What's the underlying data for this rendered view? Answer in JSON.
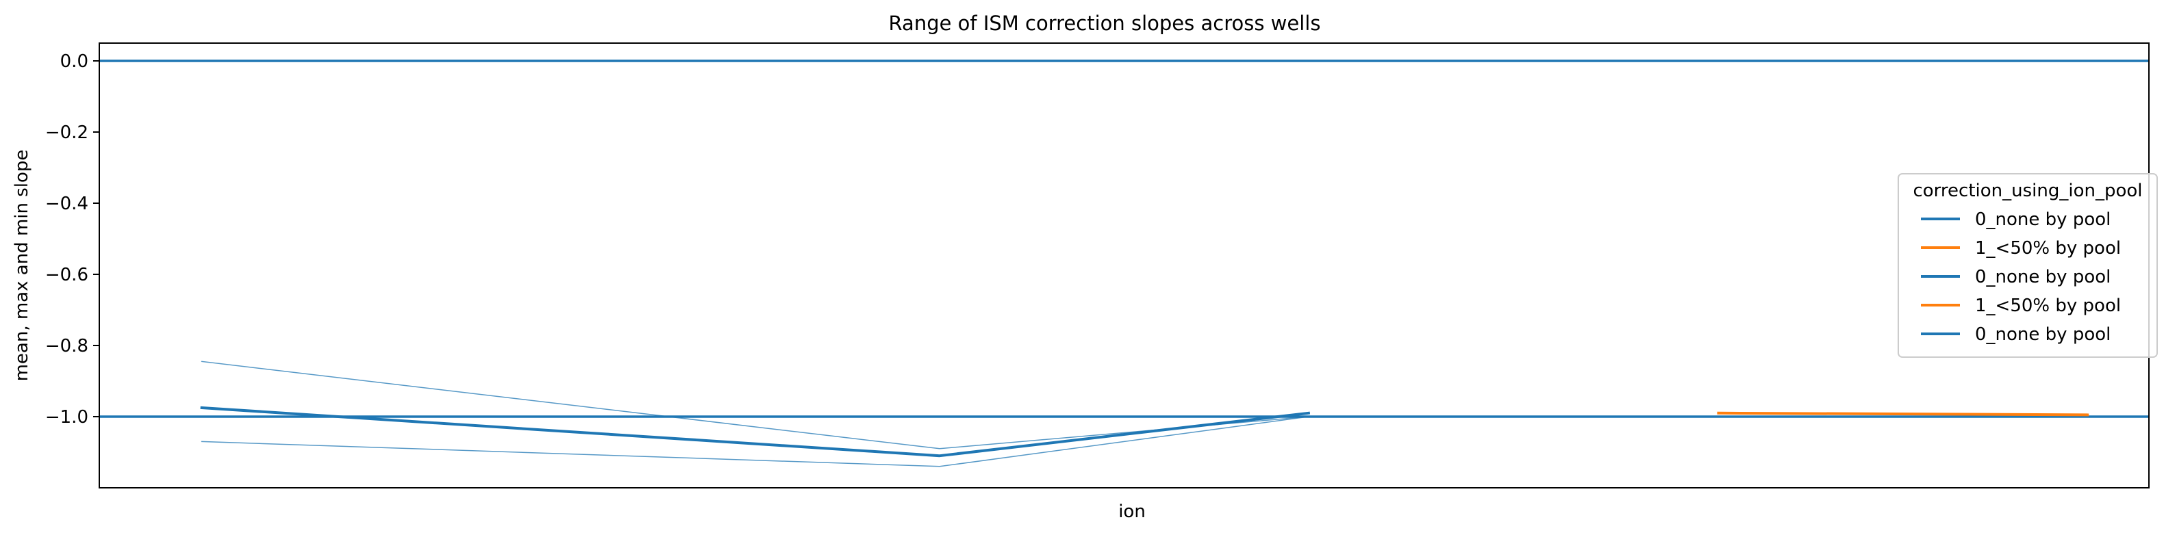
{
  "chart_data": {
    "type": "line",
    "title": "Range of ISM correction slopes across wells",
    "xlabel": "ion",
    "ylabel": "mean, max and min slope",
    "x_tick_labels": [],
    "ylim": [
      -1.2,
      0.05
    ],
    "yticks": [
      0.0,
      -0.2,
      -0.4,
      -0.6,
      -0.8,
      -1.0
    ],
    "ytick_labels": [
      "0.0",
      "−0.2",
      "−0.4",
      "−0.6",
      "−0.8",
      "−1.0"
    ],
    "x_range": [
      0,
      5
    ],
    "grid": false,
    "reference_lines": [
      {
        "y": 0.0,
        "color": "#1f77b4"
      },
      {
        "y": -1.0,
        "color": "#1f77b4"
      }
    ],
    "series": [
      {
        "role": "mean",
        "color": "#1f77b4",
        "x": [
          0.25,
          2.05,
          2.95
        ],
        "y": [
          -0.975,
          -1.11,
          -0.99
        ]
      },
      {
        "role": "max",
        "color": "#1f77b4",
        "x": [
          0.25,
          2.05,
          2.95
        ],
        "y": [
          -0.845,
          -1.09,
          -1.0
        ]
      },
      {
        "role": "min",
        "color": "#1f77b4",
        "x": [
          0.25,
          2.05,
          2.95
        ],
        "y": [
          -1.07,
          -1.14,
          -1.0
        ]
      },
      {
        "role": "mean",
        "color": "#ff7f0e",
        "x": [
          3.95,
          4.85
        ],
        "y": [
          -0.99,
          -0.995
        ]
      }
    ],
    "legend": {
      "title": "correction_using_ion_pool",
      "placement": "center-right",
      "entries": [
        {
          "label": "0_none by pool",
          "color": "#1f77b4"
        },
        {
          "label": "1_<50% by pool",
          "color": "#ff7f0e"
        },
        {
          "label": "0_none by pool",
          "color": "#1f77b4"
        },
        {
          "label": "1_<50% by pool",
          "color": "#ff7f0e"
        },
        {
          "label": "0_none by pool",
          "color": "#1f77b4"
        }
      ]
    }
  }
}
